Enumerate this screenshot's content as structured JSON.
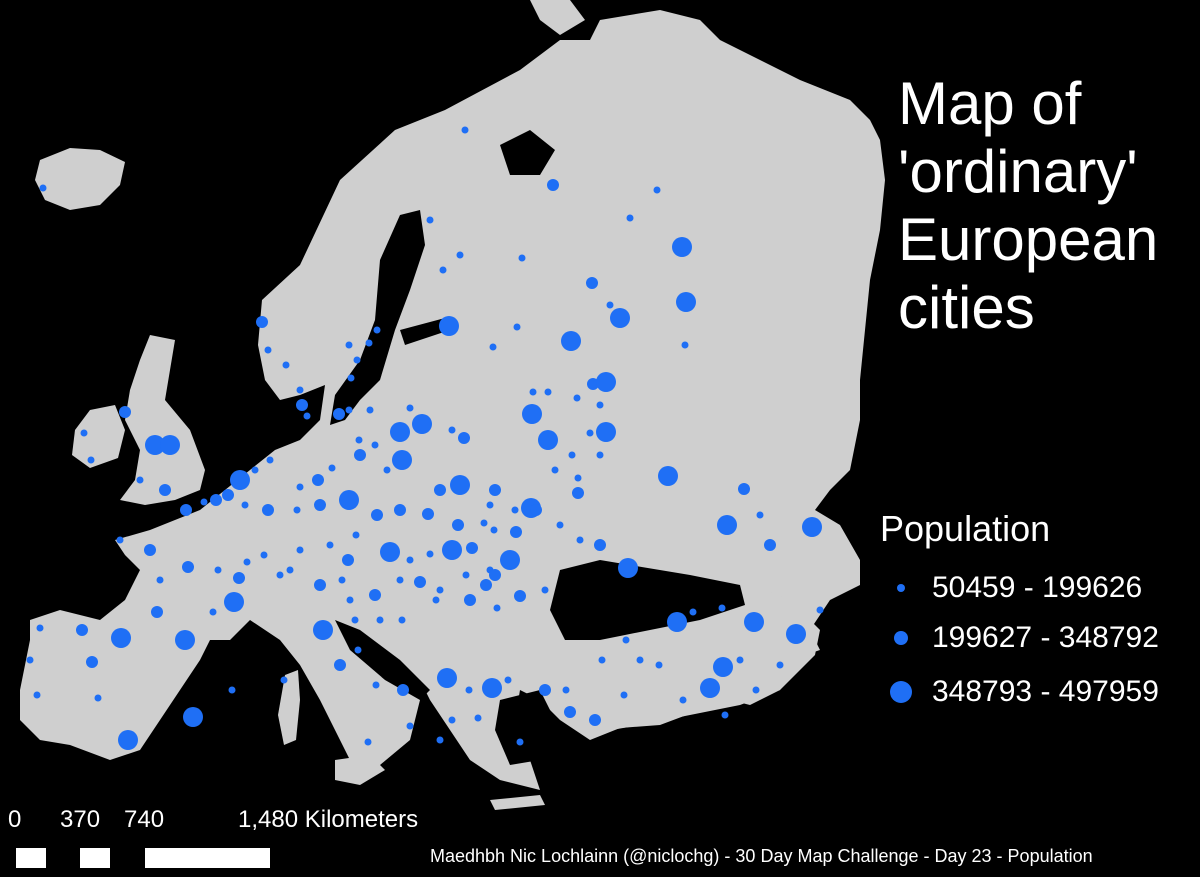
{
  "title": {
    "lines": [
      "Map of",
      "'ordinary'",
      "European",
      "cities"
    ]
  },
  "legend": {
    "title": "Population",
    "classes": [
      {
        "label": "50459 - 199626",
        "size": "small"
      },
      {
        "label": "199627 - 348792",
        "size": "medium"
      },
      {
        "label": "348793 - 497959",
        "size": "large"
      }
    ]
  },
  "scale_bar": {
    "labels": [
      "0",
      "370",
      "740",
      "1,480 Kilometers"
    ]
  },
  "credit": "Maedhbh Nic Lochlainn (@niclochg) - 30 Day Map Challenge - Day 23 - Population",
  "colors": {
    "background": "#000000",
    "land": "#cfcfcf",
    "city": "#1f6ff5",
    "text": "#ffffff"
  }
}
